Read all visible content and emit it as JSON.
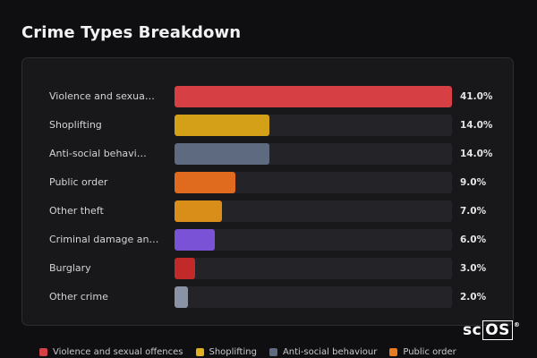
{
  "title": "Crime Types Breakdown",
  "chart_data": {
    "type": "bar",
    "orientation": "horizontal",
    "title": "Crime Types Breakdown",
    "xlim": [
      0,
      41
    ],
    "categories": [
      "Violence and sexua…",
      "Shoplifting",
      "Anti-social behavi…",
      "Public order",
      "Other theft",
      "Criminal damage an…",
      "Burglary",
      "Other crime"
    ],
    "values": [
      41.0,
      14.0,
      14.0,
      9.0,
      7.0,
      6.0,
      3.0,
      2.0
    ],
    "value_labels": [
      "41.0%",
      "14.0%",
      "14.0%",
      "9.0%",
      "7.0%",
      "6.0%",
      "3.0%",
      "2.0%"
    ],
    "colors": [
      "#d64045",
      "#d4a017",
      "#5e6a80",
      "#e06a1e",
      "#d98e1a",
      "#7a52d6",
      "#c22a2a",
      "#8a93a6"
    ],
    "legend": [
      {
        "label": "Violence and sexual offences",
        "color": "#d64045"
      },
      {
        "label": "Shoplifting",
        "color": "#e0b020"
      },
      {
        "label": "Anti-social behaviour",
        "color": "#5e6a80"
      },
      {
        "label": "Public order",
        "color": "#e87a20"
      }
    ],
    "legend_position": "bottom"
  },
  "logo": {
    "text_plain": "sc",
    "text_boxed": "OS",
    "mark": "®"
  }
}
